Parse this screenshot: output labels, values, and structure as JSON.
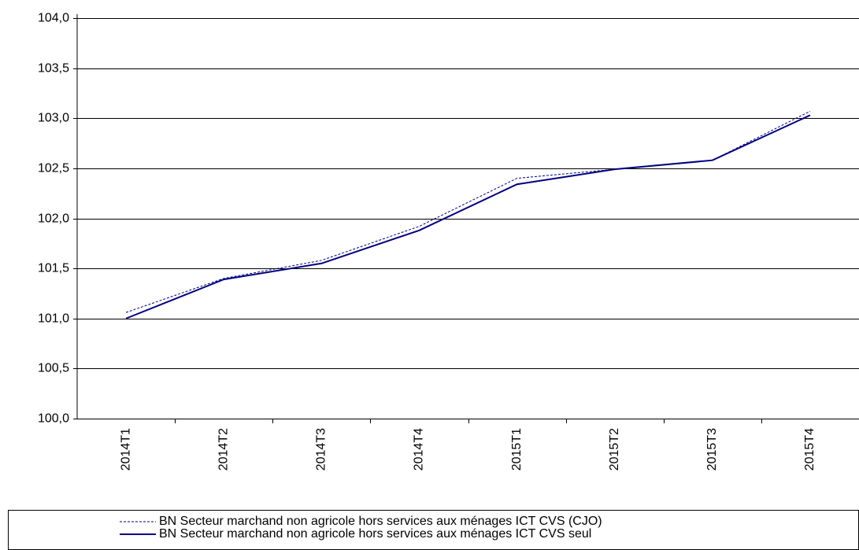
{
  "chart_data": {
    "type": "line",
    "categories": [
      "2014T1",
      "2014T2",
      "2014T3",
      "2014T4",
      "2015T1",
      "2015T2",
      "2015T3",
      "2015T4"
    ],
    "series": [
      {
        "name": "BN Secteur marchand non agricole hors services aux ménages ICT CVS (CJO)",
        "color": "#000080",
        "dashed": true,
        "values": [
          101.06,
          101.4,
          101.58,
          101.92,
          102.4,
          102.49,
          102.58,
          103.07
        ]
      },
      {
        "name": "BN Secteur marchand non agricole hors services aux ménages ICT CVS seul",
        "color": "#000080",
        "dashed": false,
        "values": [
          101.0,
          101.39,
          101.55,
          101.88,
          102.34,
          102.49,
          102.58,
          103.03
        ]
      }
    ],
    "ylim": [
      100,
      104
    ],
    "yticks": [
      {
        "value": 100,
        "label": "100,0"
      },
      {
        "value": 100.5,
        "label": "100,5"
      },
      {
        "value": 101,
        "label": "101,0"
      },
      {
        "value": 101.5,
        "label": "101,5"
      },
      {
        "value": 102,
        "label": "102,0"
      },
      {
        "value": 102.5,
        "label": "102,5"
      },
      {
        "value": 103,
        "label": "103,0"
      },
      {
        "value": 103.5,
        "label": "103,5"
      },
      {
        "value": 104,
        "label": "104,0"
      }
    ],
    "grid": true,
    "legend": "bottom"
  }
}
